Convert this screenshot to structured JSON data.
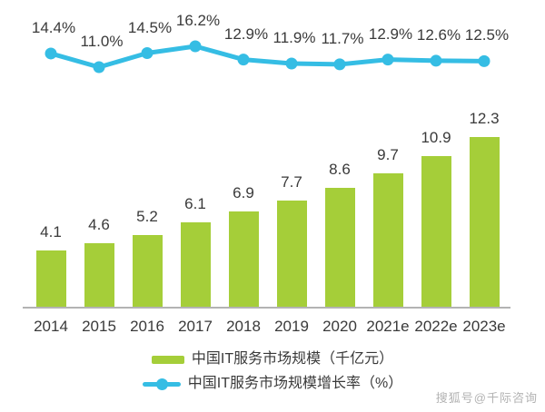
{
  "chart_data": {
    "type": "bar",
    "combo": "bar+line",
    "title": "",
    "categories": [
      "2014",
      "2015",
      "2016",
      "2017",
      "2018",
      "2019",
      "2020",
      "2021e",
      "2022e",
      "2023e"
    ],
    "series": [
      {
        "name": "中国IT服务市场规模（千亿元）",
        "type": "bar",
        "unit": "千亿元",
        "color": "#a5ce39",
        "values": [
          4.1,
          4.6,
          5.2,
          6.1,
          6.9,
          7.7,
          8.6,
          9.7,
          10.9,
          12.3
        ]
      },
      {
        "name": "中国IT服务市场规模增长率（%）",
        "type": "line",
        "unit": "%",
        "color": "#35bde4",
        "values": [
          14.4,
          11.0,
          14.5,
          16.2,
          12.9,
          11.9,
          11.7,
          12.9,
          12.6,
          12.5
        ]
      }
    ],
    "legend_position": "bottom",
    "grid": false,
    "value_labels": true,
    "ylim_bar": [
      0,
      13
    ],
    "ylim_line_pct": [
      9,
      17
    ]
  },
  "watermark": {
    "text": "搜狐号@千际咨询"
  },
  "colors": {
    "bar": "#a5ce39",
    "line": "#35bde4",
    "axis": "#b3b3b3",
    "text": "#3a3a3a",
    "background": "#ffffff"
  }
}
